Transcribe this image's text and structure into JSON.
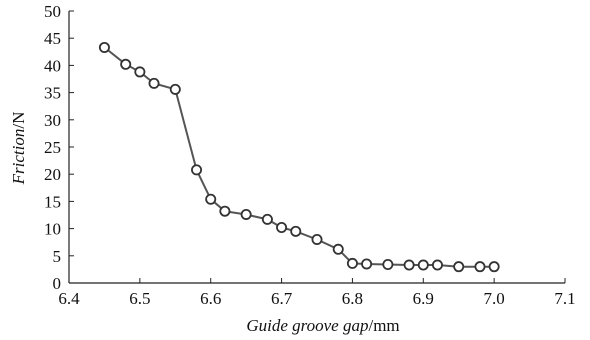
{
  "chart_data": {
    "type": "line",
    "title": "",
    "xlabel": {
      "italic": "Guide groove gap",
      "unit": "/mm"
    },
    "ylabel": {
      "italic": "Friction",
      "unit": "/N"
    },
    "xlim": [
      6.4,
      7.1
    ],
    "ylim": [
      0,
      50
    ],
    "x_ticks": [
      "6.4",
      "6.5",
      "6.6",
      "6.7",
      "6.8",
      "6.9",
      "7.0",
      "7.1"
    ],
    "y_ticks": [
      "0",
      "5",
      "10",
      "15",
      "20",
      "25",
      "30",
      "35",
      "40",
      "45",
      "50"
    ],
    "grid": false,
    "legend": "none",
    "colors": {
      "line": "#555555",
      "marker_edge": "#333333",
      "marker_fill": "#ffffff",
      "axis": "#222222"
    },
    "series": [
      {
        "x": [
          6.45,
          6.48,
          6.5,
          6.52,
          6.55,
          6.58,
          6.6,
          6.62,
          6.65,
          6.68,
          6.7,
          6.72,
          6.75,
          6.78,
          6.8,
          6.82,
          6.85,
          6.88,
          6.9,
          6.92,
          6.95,
          6.98,
          7.0
        ],
        "y": [
          43.3,
          40.2,
          38.8,
          36.7,
          35.6,
          20.8,
          15.4,
          13.2,
          12.6,
          11.7,
          10.2,
          9.5,
          8.0,
          6.2,
          3.6,
          3.5,
          3.4,
          3.3,
          3.3,
          3.3,
          3.0,
          3.0,
          3.0
        ]
      }
    ]
  }
}
